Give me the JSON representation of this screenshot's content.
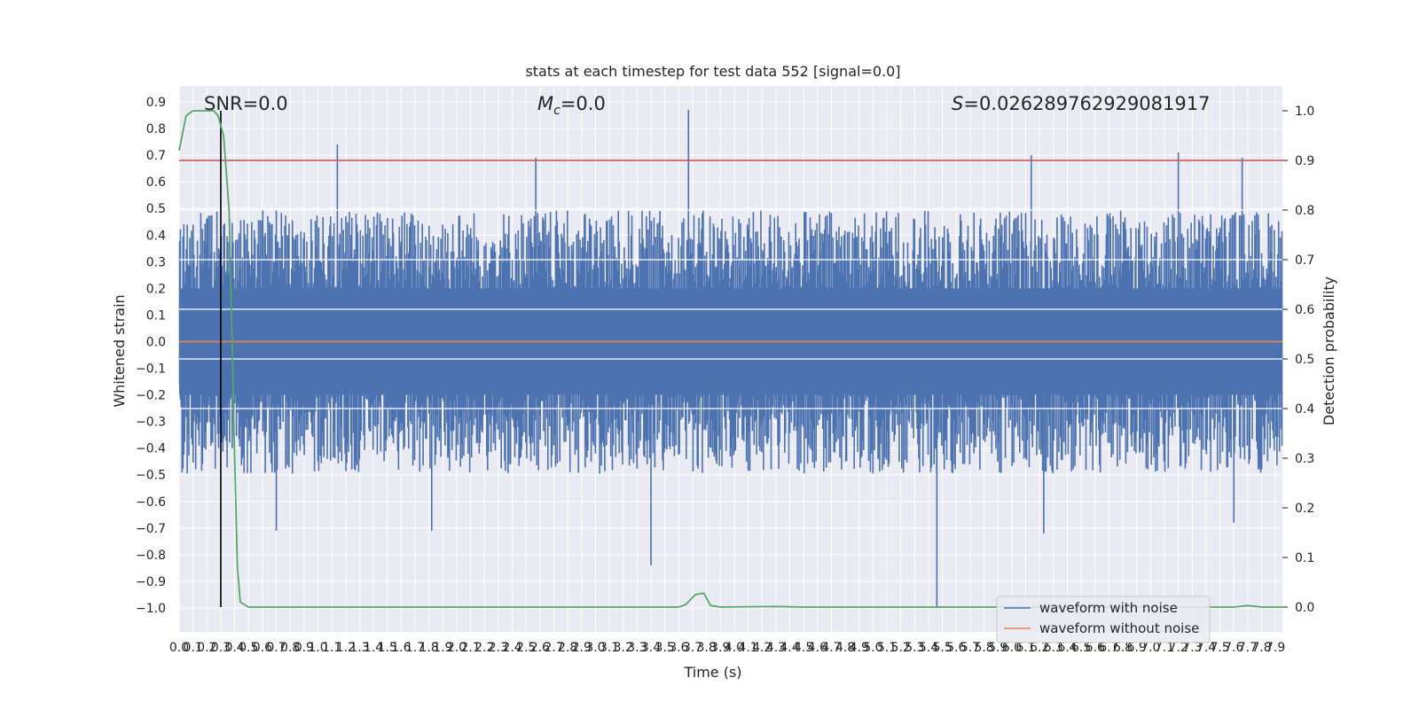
{
  "chart_data": {
    "type": "line",
    "title": "stats at each timestep for test data 552 [signal=0.0]",
    "xlabel": "Time (s)",
    "ylabel": "Whitened strain",
    "y2label": "Detection probability",
    "xlim": [
      0.0,
      7.95
    ],
    "ylim": [
      -1.09,
      0.96
    ],
    "y2lim": [
      -0.05,
      1.05
    ],
    "grid": true,
    "x_ticks": [
      "0.0",
      "0.1",
      "0.2",
      "0.3",
      "0.4",
      "0.5",
      "0.6",
      "0.7",
      "0.8",
      "0.9",
      "1.0",
      "1.1",
      "1.2",
      "1.3",
      "1.4",
      "1.5",
      "1.6",
      "1.7",
      "1.8",
      "1.9",
      "2.0",
      "2.1",
      "2.2",
      "2.3",
      "2.4",
      "2.5",
      "2.6",
      "2.7",
      "2.8",
      "2.9",
      "3.0",
      "3.1",
      "3.2",
      "3.3",
      "3.4",
      "3.5",
      "3.6",
      "3.7",
      "3.8",
      "3.9",
      "4.0",
      "4.1",
      "4.2",
      "4.3",
      "4.4",
      "4.5",
      "4.6",
      "4.7",
      "4.8",
      "4.9",
      "5.0",
      "5.1",
      "5.2",
      "5.3",
      "5.4",
      "5.5",
      "5.6",
      "5.7",
      "5.8",
      "5.9",
      "6.0",
      "6.1",
      "6.2",
      "6.3",
      "6.4",
      "6.5",
      "6.6",
      "6.7",
      "6.8",
      "6.9",
      "7.0",
      "7.1",
      "7.2",
      "7.3",
      "7.4",
      "7.5",
      "7.6",
      "7.7",
      "7.8",
      "7.9"
    ],
    "y_ticks": [
      "0.9",
      "0.8",
      "0.7",
      "0.6",
      "0.5",
      "0.4",
      "0.3",
      "0.2",
      "0.1",
      "0.0",
      "−0.1",
      "−0.2",
      "−0.3",
      "−0.4",
      "−0.5",
      "−0.6",
      "−0.7",
      "−0.8",
      "−0.9",
      "−1.0"
    ],
    "y2_ticks": [
      "1.0",
      "0.9",
      "0.8",
      "0.7",
      "0.6",
      "0.5",
      "0.4",
      "0.3",
      "0.2",
      "0.1",
      "0.0"
    ],
    "annotations": {
      "snr": "SNR=0.0",
      "mc_symbol": "M",
      "mc_sub": "c",
      "mc_value": "=0.0",
      "s_symbol": "S",
      "s_value": "=0.026289762929081917"
    },
    "threshold_probability": 0.9,
    "marker_time": 0.3,
    "series": [
      {
        "name": "waveform with noise",
        "color": "#4c72b0",
        "kind": "noise",
        "envelope_upper_typical": 0.45,
        "envelope_lower_typical": -0.45,
        "spikes": [
          [
            1.14,
            0.74
          ],
          [
            3.67,
            0.87
          ],
          [
            2.57,
            0.69
          ],
          [
            7.2,
            0.71
          ],
          [
            6.14,
            0.7
          ],
          [
            7.66,
            0.69
          ],
          [
            3.4,
            -0.84
          ],
          [
            5.46,
            -1.0
          ],
          [
            6.23,
            -0.72
          ],
          [
            0.7,
            -0.71
          ],
          [
            1.82,
            -0.71
          ],
          [
            7.6,
            -0.68
          ]
        ]
      },
      {
        "name": "waveform without noise",
        "color": "#dd8452",
        "kind": "constant",
        "value": 0.0
      },
      {
        "name": "detection probability",
        "color": "#55a868",
        "kind": "probability",
        "points": [
          [
            0.0,
            0.92
          ],
          [
            0.05,
            0.99
          ],
          [
            0.1,
            1.0
          ],
          [
            0.15,
            1.0
          ],
          [
            0.2,
            1.0
          ],
          [
            0.25,
            1.0
          ],
          [
            0.28,
            0.99
          ],
          [
            0.32,
            0.95
          ],
          [
            0.36,
            0.8
          ],
          [
            0.38,
            0.55
          ],
          [
            0.4,
            0.3
          ],
          [
            0.42,
            0.08
          ],
          [
            0.44,
            0.01
          ],
          [
            0.5,
            0.0
          ],
          [
            1.0,
            0.0
          ],
          [
            2.0,
            0.0
          ],
          [
            3.0,
            0.0
          ],
          [
            3.6,
            0.0
          ],
          [
            3.65,
            0.005
          ],
          [
            3.72,
            0.025
          ],
          [
            3.78,
            0.028
          ],
          [
            3.83,
            0.003
          ],
          [
            3.9,
            0.0
          ],
          [
            4.3,
            0.001
          ],
          [
            4.5,
            0.0
          ],
          [
            7.6,
            0.0
          ],
          [
            7.7,
            0.003
          ],
          [
            7.8,
            0.0
          ],
          [
            7.95,
            0.0
          ]
        ]
      }
    ],
    "legend": {
      "position": "lower-right",
      "entries": [
        {
          "label": "waveform with noise",
          "color": "#4c72b0"
        },
        {
          "label": "waveform without noise",
          "color": "#dd8452"
        }
      ]
    }
  }
}
